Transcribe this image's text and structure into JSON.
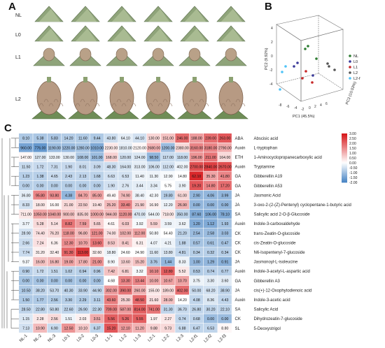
{
  "panels": {
    "a": "A",
    "b": "B",
    "c": "C"
  },
  "photo_rows": [
    "NL",
    "L0",
    "L1",
    "L2"
  ],
  "pca": {
    "xlabel": "PC1 (45.5%)",
    "ylabel": "PC2 (9.92%)",
    "zlabel": "PC3 (10.03%)",
    "legend": [
      {
        "label": "NL",
        "color": "#2e7d32"
      },
      {
        "label": "L0",
        "color": "#3b3b9a"
      },
      {
        "label": "L1",
        "color": "#c62828"
      },
      {
        "label": "L2",
        "color": "#555555"
      },
      {
        "label": "L2-f",
        "color": "#4fc3f7"
      }
    ]
  },
  "chart_data": {
    "type": "heatmap",
    "columns": [
      "NL-1",
      "NL-2",
      "NL-3",
      "L0-1",
      "L0-2",
      "L0-3",
      "L1-1",
      "L1-2",
      "L1-3",
      "L2-1",
      "L2-2",
      "L2-3",
      "L2-f1",
      "L2-f2",
      "L2-f3"
    ],
    "colorbar": {
      "ticks": [
        "3.00",
        "2.50",
        "2.00",
        "1.50",
        "1.00",
        "0.50",
        "0.00",
        "-0.50",
        "-1.00",
        "-1.50",
        "-2.00"
      ],
      "range": [
        -2,
        3
      ],
      "high": "#d7191c",
      "mid": "#ffffff",
      "low": "#4a86c5"
    },
    "rows": [
      {
        "group": "ABA",
        "name": "Abscisic acid",
        "values": [
          "8.10",
          "5.38",
          "5.83",
          "14.20",
          "11.60",
          "9.44",
          "43.80",
          "64.10",
          "44.10",
          "130.00",
          "151.00",
          "246.00",
          "188.00",
          "239.00",
          "263.00"
        ],
        "z": [
          -0.9,
          -0.93,
          -0.92,
          -0.83,
          -0.85,
          -0.88,
          -0.55,
          -0.3,
          -0.5,
          0.55,
          0.8,
          1.95,
          1.3,
          1.9,
          2.2
        ]
      },
      {
        "group": "Auxin",
        "name": "L-tryptophan",
        "values": [
          "960.00",
          "776.00",
          "1190.00",
          "1220.00",
          "1280.00",
          "1010.00",
          "2230.00",
          "1810.00",
          "2120.00",
          "2680.00",
          "1200.00",
          "2380.00",
          "3160.00",
          "3180.00",
          "2790.00"
        ],
        "z": [
          -1.5,
          -1.7,
          -1.1,
          -1.1,
          -1.0,
          -1.4,
          0.3,
          -0.3,
          0.1,
          1.0,
          -1.1,
          0.5,
          1.6,
          1.6,
          1.1
        ]
      },
      {
        "group": "ETH",
        "name": "1-Aminocyclopropanecarboxylic acid",
        "values": [
          "147.00",
          "127.00",
          "133.00",
          "130.00",
          "108.00",
          "101.00",
          "168.00",
          "120.00",
          "124.00",
          "98.50",
          "117.00",
          "118.00",
          "196.00",
          "211.00",
          "164.00"
        ],
        "z": [
          0.1,
          -0.4,
          -0.2,
          -0.3,
          -0.9,
          -1.1,
          0.6,
          -0.5,
          -0.4,
          -1.2,
          -0.6,
          -0.6,
          1.4,
          1.8,
          0.5
        ]
      },
      {
        "group": "Auxin",
        "name": "Tryptamine",
        "values": [
          "11.50",
          "1.72",
          "7.31",
          "1.90",
          "8.01",
          "3.09",
          "48.30",
          "164.00",
          "313.00",
          "106.00",
          "112.00",
          "402.00",
          "2700.00",
          "2840.00",
          "2670.00"
        ],
        "z": [
          -0.6,
          -0.62,
          -0.61,
          -0.62,
          -0.61,
          -0.62,
          -0.56,
          -0.45,
          -0.3,
          -0.5,
          -0.5,
          -0.2,
          2.3,
          2.5,
          2.3
        ]
      },
      {
        "group": "GA",
        "name": "Gibberellin A19",
        "values": [
          "1.23",
          "1.38",
          "4.65",
          "2.43",
          "2.13",
          "1.68",
          "6.63",
          "6.53",
          "11.40",
          "11.30",
          "12.90",
          "14.80",
          "62.10",
          "35.30",
          "41.80"
        ],
        "z": [
          -0.8,
          -0.8,
          -0.6,
          -0.7,
          -0.7,
          -0.75,
          -0.5,
          -0.5,
          -0.2,
          -0.2,
          -0.1,
          0.0,
          2.8,
          1.2,
          1.6
        ]
      },
      {
        "group": "GA",
        "name": "Gibberellin A53",
        "values": [
          "0.00",
          "0.00",
          "0.00",
          "0.00",
          "0.00",
          "0.00",
          "1.90",
          "2.76",
          "3.44",
          "3.34",
          "5.75",
          "3.90",
          "19.20",
          "14.80",
          "17.20"
        ],
        "z": [
          -0.8,
          -0.8,
          -0.8,
          -0.8,
          -0.8,
          -0.8,
          -0.5,
          -0.4,
          -0.3,
          -0.3,
          0.0,
          -0.2,
          2.2,
          1.6,
          1.9
        ]
      },
      {
        "group": "JA",
        "name": "Jasmonic Acid",
        "values": [
          "36.80",
          "95.80",
          "93.80",
          "4.38",
          "84.70",
          "85.00",
          "49.40",
          "74.90",
          "38.40",
          "42.30",
          "19.80",
          "61.00",
          "2.90",
          "4.06",
          "3.99"
        ],
        "z": [
          -0.3,
          1.6,
          1.5,
          -1.2,
          1.2,
          1.2,
          0.1,
          0.9,
          -0.2,
          -0.1,
          -0.8,
          0.5,
          -1.2,
          -1.2,
          -1.2
        ]
      },
      {
        "group": "JA",
        "name": "3-oxo-2-(2-(Z)-Pentenyl) cyclopentane-1-butyric acid",
        "values": [
          "8.33",
          "18.00",
          "16.00",
          "21.00",
          "22.50",
          "19.40",
          "25.20",
          "33.40",
          "21.90",
          "16.90",
          "12.20",
          "26.90",
          "0.00",
          "0.00",
          "0.00"
        ],
        "z": [
          -0.5,
          0.3,
          0.1,
          0.5,
          0.6,
          0.4,
          0.9,
          1.6,
          0.6,
          0.2,
          -0.2,
          1.0,
          -1.2,
          -1.2,
          -1.2
        ]
      },
      {
        "group": "SA",
        "name": "Salicylic acid 2-O-β-Glucoside",
        "values": [
          "711.00",
          "1050.00",
          "1040.00",
          "900.00",
          "835.00",
          "1000.00",
          "944.00",
          "1120.00",
          "470.00",
          "544.00",
          "718.00",
          "350.00",
          "87.60",
          "106.00",
          "78.10"
        ],
        "z": [
          0.3,
          1.2,
          1.2,
          0.8,
          0.6,
          1.1,
          0.9,
          1.4,
          -0.4,
          -0.2,
          0.3,
          -0.7,
          -1.4,
          -1.4,
          -1.4
        ]
      },
      {
        "group": "Auxin",
        "name": "Indole-3-carboxaldehyde",
        "values": [
          "3.77",
          "5.28",
          "5.14",
          "8.82",
          "7.59",
          "5.65",
          "4.61",
          "6.03",
          "3.92",
          "5.59",
          "3.59",
          "3.62",
          "1.20",
          "1.12",
          "1.93"
        ],
        "z": [
          -0.2,
          0.5,
          0.4,
          1.8,
          1.3,
          0.6,
          0.1,
          0.7,
          -0.1,
          0.6,
          -0.2,
          -0.2,
          -1.4,
          -1.4,
          -1.0
        ]
      },
      {
        "group": "CK",
        "name": "trans-Zeatin-O-glucoside",
        "values": [
          "28.90",
          "74.40",
          "76.20",
          "118.00",
          "96.80",
          "121.00",
          "74.00",
          "102.00",
          "112.00",
          "50.80",
          "54.40",
          "21.20",
          "2.54",
          "2.58",
          "3.03"
        ],
        "z": [
          -0.5,
          0.4,
          0.5,
          1.4,
          0.9,
          1.5,
          0.4,
          1.0,
          1.2,
          -0.1,
          0.0,
          -0.7,
          -1.1,
          -1.1,
          -1.1
        ]
      },
      {
        "group": "CK",
        "name": "cis-Zeatin-O-glucoside",
        "values": [
          "2.66",
          "7.24",
          "6.36",
          "12.30",
          "10.70",
          "13.60",
          "8.53",
          "8.41",
          "6.31",
          "4.07",
          "4.21",
          "1.88",
          "0.57",
          "0.61",
          "0.47"
        ],
        "z": [
          -0.6,
          0.4,
          0.2,
          1.5,
          1.2,
          1.8,
          0.7,
          0.7,
          0.2,
          -0.2,
          -0.2,
          -0.7,
          -1.0,
          -1.0,
          -1.0
        ]
      },
      {
        "group": "CK",
        "name": "N6-Isopentenyl-7-glucoside",
        "values": [
          "7.74",
          "31.20",
          "32.40",
          "91.30",
          "113.00",
          "32.60",
          "18.80",
          "24.60",
          "24.90",
          "11.60",
          "13.80",
          "4.81",
          "0.34",
          "0.32",
          "0.34"
        ],
        "z": [
          -0.6,
          0.2,
          0.2,
          2.0,
          2.6,
          0.2,
          -0.2,
          0.0,
          0.0,
          -0.4,
          -0.4,
          -0.7,
          -0.8,
          -0.8,
          -0.8
        ]
      },
      {
        "group": "JA",
        "name": "Jasmonoyl-L-isoleucine",
        "values": [
          "9.37",
          "16.00",
          "16.80",
          "19.00",
          "17.80",
          "21.00",
          "8.90",
          "13.60",
          "15.20",
          "3.76",
          "1.44",
          "8.33",
          "1.00",
          "1.29",
          "0.91"
        ],
        "z": [
          -0.1,
          0.8,
          0.9,
          1.2,
          1.0,
          1.4,
          -0.1,
          0.6,
          0.8,
          -0.9,
          -1.2,
          -0.2,
          -1.2,
          -1.2,
          -1.3
        ]
      },
      {
        "group": "Auxin",
        "name": "Indole-3-acetyl-L-aspartic acid",
        "values": [
          "0.90",
          "1.72",
          "1.51",
          "1.02",
          "0.94",
          "0.96",
          "7.42",
          "6.81",
          "3.32",
          "10.10",
          "12.80",
          "5.52",
          "0.53",
          "0.74",
          "0.77"
        ],
        "z": [
          -0.8,
          -0.6,
          -0.65,
          -0.75,
          -0.78,
          -0.77,
          0.8,
          0.6,
          -0.1,
          1.5,
          2.1,
          0.3,
          -0.85,
          -0.8,
          -0.8
        ]
      },
      {
        "group": "GA",
        "name": "Gibberellin A3",
        "values": [
          "0.00",
          "0.00",
          "0.00",
          "0.00",
          "0.00",
          "0.00",
          "4.68",
          "13.30",
          "13.44",
          "10.00",
          "10.67",
          "10.70",
          "3.75",
          "3.30",
          "3.60"
        ],
        "z": [
          -1.0,
          -1.0,
          -1.0,
          -1.0,
          -1.0,
          -1.0,
          0.0,
          1.6,
          1.6,
          1.1,
          1.2,
          1.2,
          -0.2,
          -0.3,
          -0.3
        ]
      },
      {
        "group": "JA",
        "name": "cis(+)-12-Oxophytodienoic acid",
        "values": [
          "10.50",
          "38.20",
          "53.70",
          "40.30",
          "33.90",
          "44.90",
          "302.00",
          "390.00",
          "260.00",
          "155.00",
          "189.00",
          "402.00",
          "50.00",
          "68.20",
          "38.90"
        ],
        "z": [
          -0.9,
          -0.7,
          -0.6,
          -0.7,
          -0.7,
          -0.7,
          1.3,
          1.8,
          1.0,
          0.3,
          0.5,
          1.9,
          -0.6,
          -0.5,
          -0.7
        ]
      },
      {
        "group": "Auxin",
        "name": "Indole-3-acetic acid",
        "values": [
          "1.50",
          "1.77",
          "2.56",
          "3.30",
          "2.29",
          "3.11",
          "43.60",
          "25.30",
          "48.50",
          "21.60",
          "28.00",
          "14.20",
          "4.08",
          "8.36",
          "4.43"
        ],
        "z": [
          -0.9,
          -0.9,
          -0.85,
          -0.8,
          -0.85,
          -0.8,
          1.7,
          0.6,
          2.0,
          0.4,
          0.8,
          0.0,
          -0.7,
          -0.4,
          -0.7
        ]
      },
      {
        "group": "SA",
        "name": "Salicylic Acid",
        "values": [
          "28.50",
          "22.80",
          "50.80",
          "22.60",
          "26.90",
          "22.30",
          "709.00",
          "587.00",
          "814.00",
          "741.00",
          "31.30",
          "36.70",
          "26.80",
          "30.20",
          "22.10"
        ],
        "z": [
          -0.7,
          -0.7,
          -0.6,
          -0.7,
          -0.7,
          -0.7,
          1.7,
          1.3,
          2.1,
          1.8,
          -0.7,
          -0.6,
          -0.7,
          -0.7,
          -0.7
        ]
      },
      {
        "group": "CK",
        "name": "Dihydrozeatin-7-glucoside",
        "values": [
          "1.15",
          "2.28",
          "2.56",
          "1.51",
          "2.03",
          "3.51",
          "5.56",
          "5.26",
          "5.55",
          "1.97",
          "2.27",
          "0.74",
          "0.68",
          "0.00",
          "0.00"
        ],
        "z": [
          -0.4,
          0.3,
          0.5,
          -0.2,
          0.2,
          1.1,
          2.1,
          2.0,
          2.1,
          0.2,
          0.3,
          -0.7,
          -0.7,
          -1.1,
          -1.1
        ]
      },
      {
        "group": "SL",
        "name": "5-Deoxystrigol",
        "values": [
          "7.13",
          "10.90",
          "6.90",
          "12.50",
          "10.10",
          "6.37",
          "15.20",
          "12.10",
          "11.20",
          "9.88",
          "9.73",
          "6.88",
          "6.47",
          "6.53",
          "8.80"
        ],
        "z": [
          -0.5,
          0.9,
          -0.6,
          1.4,
          0.7,
          -0.7,
          2.2,
          1.3,
          1.0,
          0.6,
          0.5,
          -0.6,
          -0.7,
          -0.7,
          0.1
        ]
      }
    ]
  }
}
